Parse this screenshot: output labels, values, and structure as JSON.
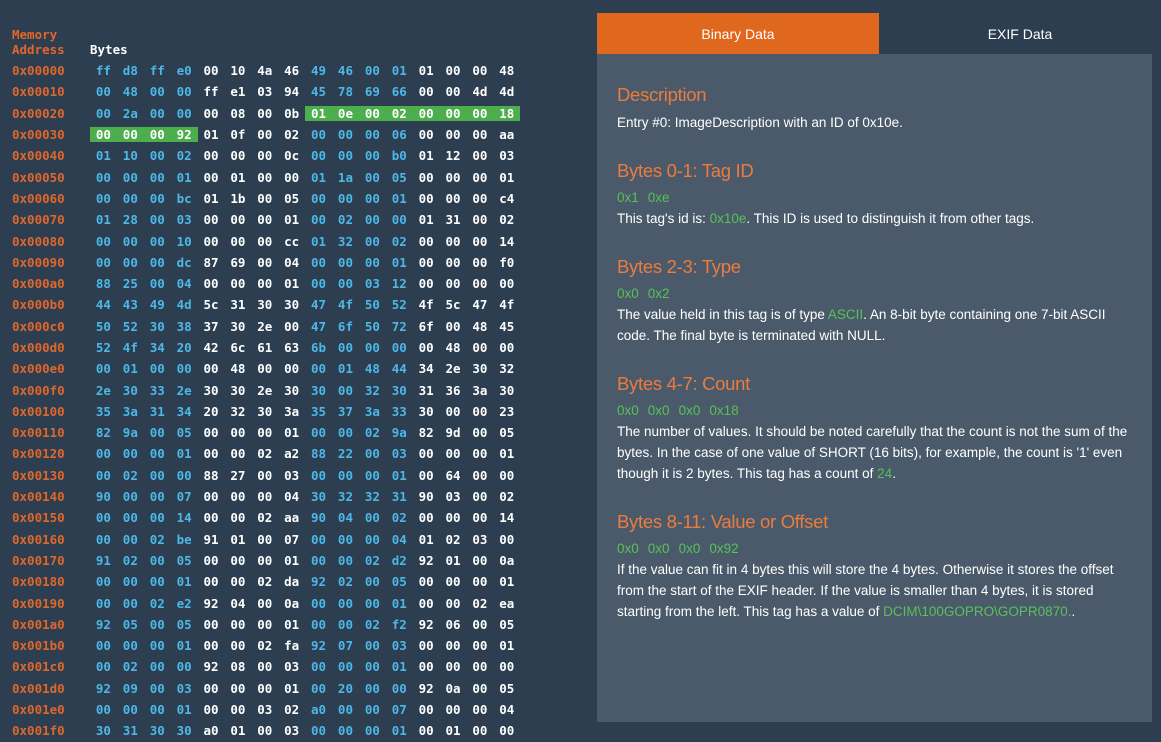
{
  "hex": {
    "header": {
      "addr_label_1": "Memory",
      "addr_label_2": "Address",
      "bytes_label": "Bytes"
    },
    "rows": [
      {
        "addr": "0x00000",
        "bytes": [
          "ff",
          "d8",
          "ff",
          "e0",
          "00",
          "10",
          "4a",
          "46",
          "49",
          "46",
          "00",
          "01",
          "01",
          "00",
          "00",
          "48"
        ]
      },
      {
        "addr": "0x00010",
        "bytes": [
          "00",
          "48",
          "00",
          "00",
          "ff",
          "e1",
          "03",
          "94",
          "45",
          "78",
          "69",
          "66",
          "00",
          "00",
          "4d",
          "4d"
        ]
      },
      {
        "addr": "0x00020",
        "bytes": [
          "00",
          "2a",
          "00",
          "00",
          "00",
          "08",
          "00",
          "0b",
          "01",
          "0e",
          "00",
          "02",
          "00",
          "00",
          "00",
          "18"
        ]
      },
      {
        "addr": "0x00030",
        "bytes": [
          "00",
          "00",
          "00",
          "92",
          "01",
          "0f",
          "00",
          "02",
          "00",
          "00",
          "00",
          "06",
          "00",
          "00",
          "00",
          "aa"
        ]
      },
      {
        "addr": "0x00040",
        "bytes": [
          "01",
          "10",
          "00",
          "02",
          "00",
          "00",
          "00",
          "0c",
          "00",
          "00",
          "00",
          "b0",
          "01",
          "12",
          "00",
          "03"
        ]
      },
      {
        "addr": "0x00050",
        "bytes": [
          "00",
          "00",
          "00",
          "01",
          "00",
          "01",
          "00",
          "00",
          "01",
          "1a",
          "00",
          "05",
          "00",
          "00",
          "00",
          "01"
        ]
      },
      {
        "addr": "0x00060",
        "bytes": [
          "00",
          "00",
          "00",
          "bc",
          "01",
          "1b",
          "00",
          "05",
          "00",
          "00",
          "00",
          "01",
          "00",
          "00",
          "00",
          "c4"
        ]
      },
      {
        "addr": "0x00070",
        "bytes": [
          "01",
          "28",
          "00",
          "03",
          "00",
          "00",
          "00",
          "01",
          "00",
          "02",
          "00",
          "00",
          "01",
          "31",
          "00",
          "02"
        ]
      },
      {
        "addr": "0x00080",
        "bytes": [
          "00",
          "00",
          "00",
          "10",
          "00",
          "00",
          "00",
          "cc",
          "01",
          "32",
          "00",
          "02",
          "00",
          "00",
          "00",
          "14"
        ]
      },
      {
        "addr": "0x00090",
        "bytes": [
          "00",
          "00",
          "00",
          "dc",
          "87",
          "69",
          "00",
          "04",
          "00",
          "00",
          "00",
          "01",
          "00",
          "00",
          "00",
          "f0"
        ]
      },
      {
        "addr": "0x000a0",
        "bytes": [
          "88",
          "25",
          "00",
          "04",
          "00",
          "00",
          "00",
          "01",
          "00",
          "00",
          "03",
          "12",
          "00",
          "00",
          "00",
          "00"
        ]
      },
      {
        "addr": "0x000b0",
        "bytes": [
          "44",
          "43",
          "49",
          "4d",
          "5c",
          "31",
          "30",
          "30",
          "47",
          "4f",
          "50",
          "52",
          "4f",
          "5c",
          "47",
          "4f"
        ]
      },
      {
        "addr": "0x000c0",
        "bytes": [
          "50",
          "52",
          "30",
          "38",
          "37",
          "30",
          "2e",
          "00",
          "47",
          "6f",
          "50",
          "72",
          "6f",
          "00",
          "48",
          "45"
        ]
      },
      {
        "addr": "0x000d0",
        "bytes": [
          "52",
          "4f",
          "34",
          "20",
          "42",
          "6c",
          "61",
          "63",
          "6b",
          "00",
          "00",
          "00",
          "00",
          "48",
          "00",
          "00"
        ]
      },
      {
        "addr": "0x000e0",
        "bytes": [
          "00",
          "01",
          "00",
          "00",
          "00",
          "48",
          "00",
          "00",
          "00",
          "01",
          "48",
          "44",
          "34",
          "2e",
          "30",
          "32"
        ]
      },
      {
        "addr": "0x000f0",
        "bytes": [
          "2e",
          "30",
          "33",
          "2e",
          "30",
          "30",
          "2e",
          "30",
          "30",
          "00",
          "32",
          "30",
          "31",
          "36",
          "3a",
          "30"
        ]
      },
      {
        "addr": "0x00100",
        "bytes": [
          "35",
          "3a",
          "31",
          "34",
          "20",
          "32",
          "30",
          "3a",
          "35",
          "37",
          "3a",
          "33",
          "30",
          "00",
          "00",
          "23"
        ]
      },
      {
        "addr": "0x00110",
        "bytes": [
          "82",
          "9a",
          "00",
          "05",
          "00",
          "00",
          "00",
          "01",
          "00",
          "00",
          "02",
          "9a",
          "82",
          "9d",
          "00",
          "05"
        ]
      },
      {
        "addr": "0x00120",
        "bytes": [
          "00",
          "00",
          "00",
          "01",
          "00",
          "00",
          "02",
          "a2",
          "88",
          "22",
          "00",
          "03",
          "00",
          "00",
          "00",
          "01"
        ]
      },
      {
        "addr": "0x00130",
        "bytes": [
          "00",
          "02",
          "00",
          "00",
          "88",
          "27",
          "00",
          "03",
          "00",
          "00",
          "00",
          "01",
          "00",
          "64",
          "00",
          "00"
        ]
      },
      {
        "addr": "0x00140",
        "bytes": [
          "90",
          "00",
          "00",
          "07",
          "00",
          "00",
          "00",
          "04",
          "30",
          "32",
          "32",
          "31",
          "90",
          "03",
          "00",
          "02"
        ]
      },
      {
        "addr": "0x00150",
        "bytes": [
          "00",
          "00",
          "00",
          "14",
          "00",
          "00",
          "02",
          "aa",
          "90",
          "04",
          "00",
          "02",
          "00",
          "00",
          "00",
          "14"
        ]
      },
      {
        "addr": "0x00160",
        "bytes": [
          "00",
          "00",
          "02",
          "be",
          "91",
          "01",
          "00",
          "07",
          "00",
          "00",
          "00",
          "04",
          "01",
          "02",
          "03",
          "00"
        ]
      },
      {
        "addr": "0x00170",
        "bytes": [
          "91",
          "02",
          "00",
          "05",
          "00",
          "00",
          "00",
          "01",
          "00",
          "00",
          "02",
          "d2",
          "92",
          "01",
          "00",
          "0a"
        ]
      },
      {
        "addr": "0x00180",
        "bytes": [
          "00",
          "00",
          "00",
          "01",
          "00",
          "00",
          "02",
          "da",
          "92",
          "02",
          "00",
          "05",
          "00",
          "00",
          "00",
          "01"
        ]
      },
      {
        "addr": "0x00190",
        "bytes": [
          "00",
          "00",
          "02",
          "e2",
          "92",
          "04",
          "00",
          "0a",
          "00",
          "00",
          "00",
          "01",
          "00",
          "00",
          "02",
          "ea"
        ]
      },
      {
        "addr": "0x001a0",
        "bytes": [
          "92",
          "05",
          "00",
          "05",
          "00",
          "00",
          "00",
          "01",
          "00",
          "00",
          "02",
          "f2",
          "92",
          "06",
          "00",
          "05"
        ]
      },
      {
        "addr": "0x001b0",
        "bytes": [
          "00",
          "00",
          "00",
          "01",
          "00",
          "00",
          "02",
          "fa",
          "92",
          "07",
          "00",
          "03",
          "00",
          "00",
          "00",
          "01"
        ]
      },
      {
        "addr": "0x001c0",
        "bytes": [
          "00",
          "02",
          "00",
          "00",
          "92",
          "08",
          "00",
          "03",
          "00",
          "00",
          "00",
          "01",
          "00",
          "00",
          "00",
          "00"
        ]
      },
      {
        "addr": "0x001d0",
        "bytes": [
          "92",
          "09",
          "00",
          "03",
          "00",
          "00",
          "00",
          "01",
          "00",
          "20",
          "00",
          "00",
          "92",
          "0a",
          "00",
          "05"
        ]
      },
      {
        "addr": "0x001e0",
        "bytes": [
          "00",
          "00",
          "00",
          "01",
          "00",
          "00",
          "03",
          "02",
          "a0",
          "00",
          "00",
          "07",
          "00",
          "00",
          "00",
          "04"
        ]
      },
      {
        "addr": "0x001f0",
        "bytes": [
          "30",
          "31",
          "30",
          "30",
          "a0",
          "01",
          "00",
          "03",
          "00",
          "00",
          "00",
          "01",
          "00",
          "01",
          "00",
          "00"
        ]
      }
    ],
    "selected_range": {
      "start": 40,
      "end": 51
    },
    "colors": {
      "address": "#e0672a",
      "byte_a": "#4db8e8",
      "byte_b": "#ffffff",
      "selected_bg": "#4cae4c"
    }
  },
  "tabs": [
    {
      "label": "Binary Data",
      "active": true
    },
    {
      "label": "EXIF Data",
      "active": false
    }
  ],
  "panel": {
    "description": {
      "title": "Description",
      "text": "Entry #0: ImageDescription with an ID of 0x10e."
    },
    "tag_id": {
      "title": "Bytes 0-1: Tag ID",
      "bytes": [
        "0x1",
        "0xe"
      ],
      "text_before": "This tag's id is: ",
      "highlight": "0x10e",
      "text_after": ". This ID is used to distinguish it from other tags."
    },
    "type": {
      "title": "Bytes 2-3: Type",
      "bytes": [
        "0x0",
        "0x2"
      ],
      "text_before": "The value held in this tag is of type ",
      "highlight": "ASCII",
      "text_after": ". An 8-bit byte containing one 7-bit ASCII code. The final byte is terminated with NULL."
    },
    "count": {
      "title": "Bytes 4-7: Count",
      "bytes": [
        "0x0",
        "0x0",
        "0x0",
        "0x18"
      ],
      "text_before": "The number of values. It should be noted carefully that the count is not the sum of the bytes. In the case of one value of SHORT (16 bits), for example, the count is '1' even though it is 2 bytes. This tag has a count of ",
      "highlight": "24",
      "text_after": "."
    },
    "value": {
      "title": "Bytes 8-11: Value or Offset",
      "bytes": [
        "0x0",
        "0x0",
        "0x0",
        "0x92"
      ],
      "text_before": "If the value can fit in 4 bytes this will store the 4 bytes. Otherwise it stores the offset from the start of the EXIF header. If the value is smaller than 4 bytes, it is stored starting from the left. This tag has a value of ",
      "highlight": "DCIM\\100GOPRO\\GOPR0870.",
      "text_after": "."
    }
  }
}
